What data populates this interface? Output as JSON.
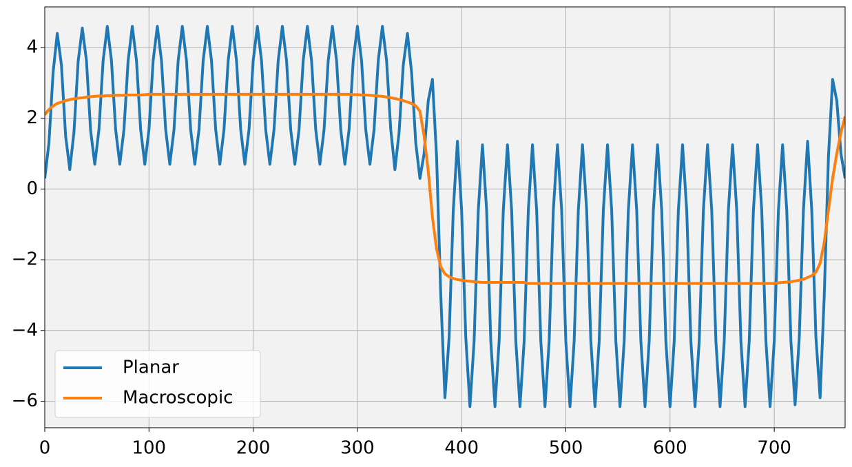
{
  "chart_data": {
    "type": "line",
    "x": [
      0,
      4,
      8,
      12,
      16,
      20,
      24,
      28,
      32,
      36,
      40,
      44,
      48,
      52,
      56,
      60,
      64,
      68,
      72,
      76,
      80,
      84,
      88,
      92,
      96,
      100,
      104,
      108,
      112,
      116,
      120,
      124,
      128,
      132,
      136,
      140,
      144,
      148,
      152,
      156,
      160,
      164,
      168,
      172,
      176,
      180,
      184,
      188,
      192,
      196,
      200,
      204,
      208,
      212,
      216,
      220,
      224,
      228,
      232,
      236,
      240,
      244,
      248,
      252,
      256,
      260,
      264,
      268,
      272,
      276,
      280,
      284,
      288,
      292,
      296,
      300,
      304,
      308,
      312,
      316,
      320,
      324,
      328,
      332,
      336,
      340,
      344,
      348,
      352,
      356,
      360,
      364,
      368,
      372,
      376,
      380,
      384,
      388,
      392,
      396,
      400,
      404,
      408,
      412,
      416,
      420,
      424,
      428,
      432,
      436,
      440,
      444,
      448,
      452,
      456,
      460,
      464,
      468,
      472,
      476,
      480,
      484,
      488,
      492,
      496,
      500,
      504,
      508,
      512,
      516,
      520,
      524,
      528,
      532,
      536,
      540,
      544,
      548,
      552,
      556,
      560,
      564,
      568,
      572,
      576,
      580,
      584,
      588,
      592,
      596,
      600,
      604,
      608,
      612,
      616,
      620,
      624,
      628,
      632,
      636,
      640,
      644,
      648,
      652,
      656,
      660,
      664,
      668,
      672,
      676,
      680,
      684,
      688,
      692,
      696,
      700,
      704,
      708,
      712,
      716,
      720,
      724,
      728,
      732,
      736,
      740,
      744,
      748,
      752,
      756,
      760,
      764,
      768
    ],
    "series": [
      {
        "name": "Planar",
        "color": "#1f77b4",
        "values": [
          0.3,
          1.3,
          3.3,
          4.4,
          3.5,
          1.5,
          0.55,
          1.6,
          3.6,
          4.55,
          3.63,
          1.65,
          0.7,
          1.68,
          3.63,
          4.6,
          3.63,
          1.68,
          0.7,
          1.68,
          3.63,
          4.6,
          3.63,
          1.68,
          0.7,
          1.68,
          3.63,
          4.6,
          3.63,
          1.68,
          0.7,
          1.68,
          3.63,
          4.6,
          3.63,
          1.68,
          0.7,
          1.68,
          3.63,
          4.6,
          3.63,
          1.68,
          0.7,
          1.68,
          3.63,
          4.6,
          3.63,
          1.68,
          0.7,
          1.68,
          3.63,
          4.6,
          3.63,
          1.68,
          0.7,
          1.68,
          3.63,
          4.6,
          3.63,
          1.68,
          0.7,
          1.68,
          3.63,
          4.6,
          3.63,
          1.68,
          0.7,
          1.68,
          3.63,
          4.6,
          3.63,
          1.68,
          0.7,
          1.68,
          3.63,
          4.6,
          3.63,
          1.68,
          0.7,
          1.68,
          3.63,
          4.6,
          3.63,
          1.68,
          0.55,
          1.6,
          3.5,
          4.4,
          3.3,
          1.3,
          0.3,
          1.0,
          2.5,
          3.1,
          0.9,
          -3.0,
          -5.9,
          -4.2,
          -0.6,
          1.35,
          -0.6,
          -4.2,
          -6.15,
          -4.3,
          -0.6,
          1.25,
          -0.6,
          -4.3,
          -6.15,
          -4.3,
          -0.6,
          1.25,
          -0.6,
          -4.3,
          -6.15,
          -4.3,
          -0.6,
          1.25,
          -0.6,
          -4.3,
          -6.15,
          -4.3,
          -0.6,
          1.25,
          -0.6,
          -4.3,
          -6.15,
          -4.3,
          -0.6,
          1.25,
          -0.6,
          -4.3,
          -6.15,
          -4.3,
          -0.6,
          1.25,
          -0.6,
          -4.3,
          -6.15,
          -4.3,
          -0.6,
          1.25,
          -0.6,
          -4.3,
          -6.15,
          -4.3,
          -0.6,
          1.25,
          -0.6,
          -4.3,
          -6.15,
          -4.3,
          -0.6,
          1.25,
          -0.6,
          -4.3,
          -6.15,
          -4.3,
          -0.6,
          1.25,
          -0.6,
          -4.3,
          -6.15,
          -4.3,
          -0.6,
          1.25,
          -0.6,
          -4.3,
          -6.15,
          -4.3,
          -0.6,
          1.25,
          -0.6,
          -4.3,
          -6.15,
          -4.3,
          -0.6,
          1.25,
          -0.6,
          -4.3,
          -6.1,
          -4.2,
          -0.6,
          1.35,
          -0.6,
          -4.2,
          -5.9,
          -3.0,
          0.9,
          3.1,
          2.5,
          1.0,
          0.3
        ]
      },
      {
        "name": "Macroscopic",
        "color": "#ff7f0e",
        "values": [
          2.1,
          2.25,
          2.35,
          2.42,
          2.46,
          2.5,
          2.53,
          2.55,
          2.57,
          2.58,
          2.6,
          2.61,
          2.62,
          2.63,
          2.63,
          2.64,
          2.64,
          2.65,
          2.65,
          2.65,
          2.66,
          2.66,
          2.66,
          2.66,
          2.67,
          2.68,
          2.68,
          2.68,
          2.68,
          2.68,
          2.68,
          2.68,
          2.68,
          2.68,
          2.68,
          2.68,
          2.68,
          2.68,
          2.68,
          2.68,
          2.68,
          2.68,
          2.68,
          2.68,
          2.68,
          2.68,
          2.68,
          2.68,
          2.68,
          2.68,
          2.68,
          2.68,
          2.68,
          2.68,
          2.68,
          2.68,
          2.68,
          2.68,
          2.68,
          2.68,
          2.68,
          2.68,
          2.68,
          2.68,
          2.68,
          2.68,
          2.68,
          2.68,
          2.68,
          2.68,
          2.68,
          2.68,
          2.68,
          2.68,
          2.67,
          2.67,
          2.66,
          2.66,
          2.65,
          2.64,
          2.63,
          2.62,
          2.6,
          2.58,
          2.56,
          2.53,
          2.5,
          2.46,
          2.42,
          2.35,
          2.2,
          1.5,
          0.5,
          -0.8,
          -1.7,
          -2.2,
          -2.4,
          -2.48,
          -2.53,
          -2.56,
          -2.58,
          -2.6,
          -2.61,
          -2.62,
          -2.63,
          -2.64,
          -2.64,
          -2.64,
          -2.64,
          -2.64,
          -2.64,
          -2.64,
          -2.64,
          -2.64,
          -2.64,
          -2.64,
          -2.67,
          -2.67,
          -2.67,
          -2.67,
          -2.67,
          -2.67,
          -2.67,
          -2.67,
          -2.67,
          -2.67,
          -2.67,
          -2.67,
          -2.67,
          -2.67,
          -2.67,
          -2.67,
          -2.67,
          -2.67,
          -2.67,
          -2.67,
          -2.67,
          -2.67,
          -2.67,
          -2.67,
          -2.67,
          -2.67,
          -2.67,
          -2.67,
          -2.67,
          -2.67,
          -2.67,
          -2.67,
          -2.67,
          -2.67,
          -2.67,
          -2.67,
          -2.67,
          -2.67,
          -2.67,
          -2.67,
          -2.67,
          -2.67,
          -2.67,
          -2.67,
          -2.67,
          -2.67,
          -2.67,
          -2.67,
          -2.67,
          -2.67,
          -2.67,
          -2.67,
          -2.67,
          -2.67,
          -2.67,
          -2.67,
          -2.67,
          -2.67,
          -2.67,
          -2.67,
          -2.65,
          -2.64,
          -2.63,
          -2.62,
          -2.6,
          -2.58,
          -2.55,
          -2.5,
          -2.45,
          -2.35,
          -2.1,
          -1.5,
          -0.6,
          0.3,
          1.0,
          1.6,
          2.05
        ]
      }
    ],
    "xlim": [
      0,
      768
    ],
    "ylim": [
      -6.75,
      5.15
    ],
    "xticks": [
      0,
      100,
      200,
      300,
      400,
      500,
      600,
      700
    ],
    "yticks": [
      {
        "value": -6,
        "label": "−6"
      },
      {
        "value": -4,
        "label": "−4"
      },
      {
        "value": -2,
        "label": "−2"
      },
      0,
      2,
      4
    ],
    "grid": true,
    "legend": "lower left"
  }
}
